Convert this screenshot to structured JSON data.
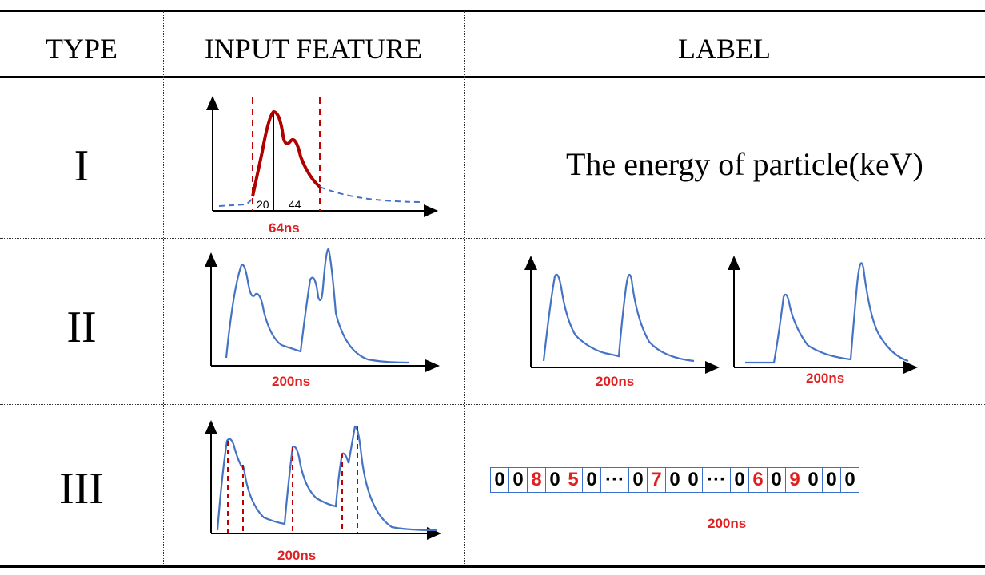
{
  "headers": {
    "type": "TYPE",
    "input": "INPUT FEATURE",
    "label": "LABEL"
  },
  "rows": [
    {
      "type": "I",
      "duration": "64ns",
      "tick_a": "20",
      "tick_b": "44",
      "label": "The energy of particle(keV)"
    },
    {
      "type": "II",
      "duration": "200ns",
      "label_durations": [
        "200ns",
        "200ns"
      ]
    },
    {
      "type": "III",
      "duration": "200ns",
      "label_duration": "200ns"
    }
  ],
  "sequence": [
    {
      "v": "0",
      "hl": false
    },
    {
      "v": "0",
      "hl": false
    },
    {
      "v": "8",
      "hl": true
    },
    {
      "v": "0",
      "hl": false
    },
    {
      "v": "5",
      "hl": true
    },
    {
      "v": "0",
      "hl": false
    },
    {
      "v": "···",
      "hl": false
    },
    {
      "v": "0",
      "hl": false
    },
    {
      "v": "7",
      "hl": true
    },
    {
      "v": "0",
      "hl": false
    },
    {
      "v": "0",
      "hl": false
    },
    {
      "v": "···",
      "hl": false
    },
    {
      "v": "0",
      "hl": false
    },
    {
      "v": "6",
      "hl": true
    },
    {
      "v": "0",
      "hl": false
    },
    {
      "v": "9",
      "hl": true
    },
    {
      "v": "0",
      "hl": false
    },
    {
      "v": "0",
      "hl": false
    },
    {
      "v": "0",
      "hl": false
    }
  ],
  "colors": {
    "signal": "#4472c4",
    "highlight": "#c00000",
    "red_text": "#e02020"
  }
}
